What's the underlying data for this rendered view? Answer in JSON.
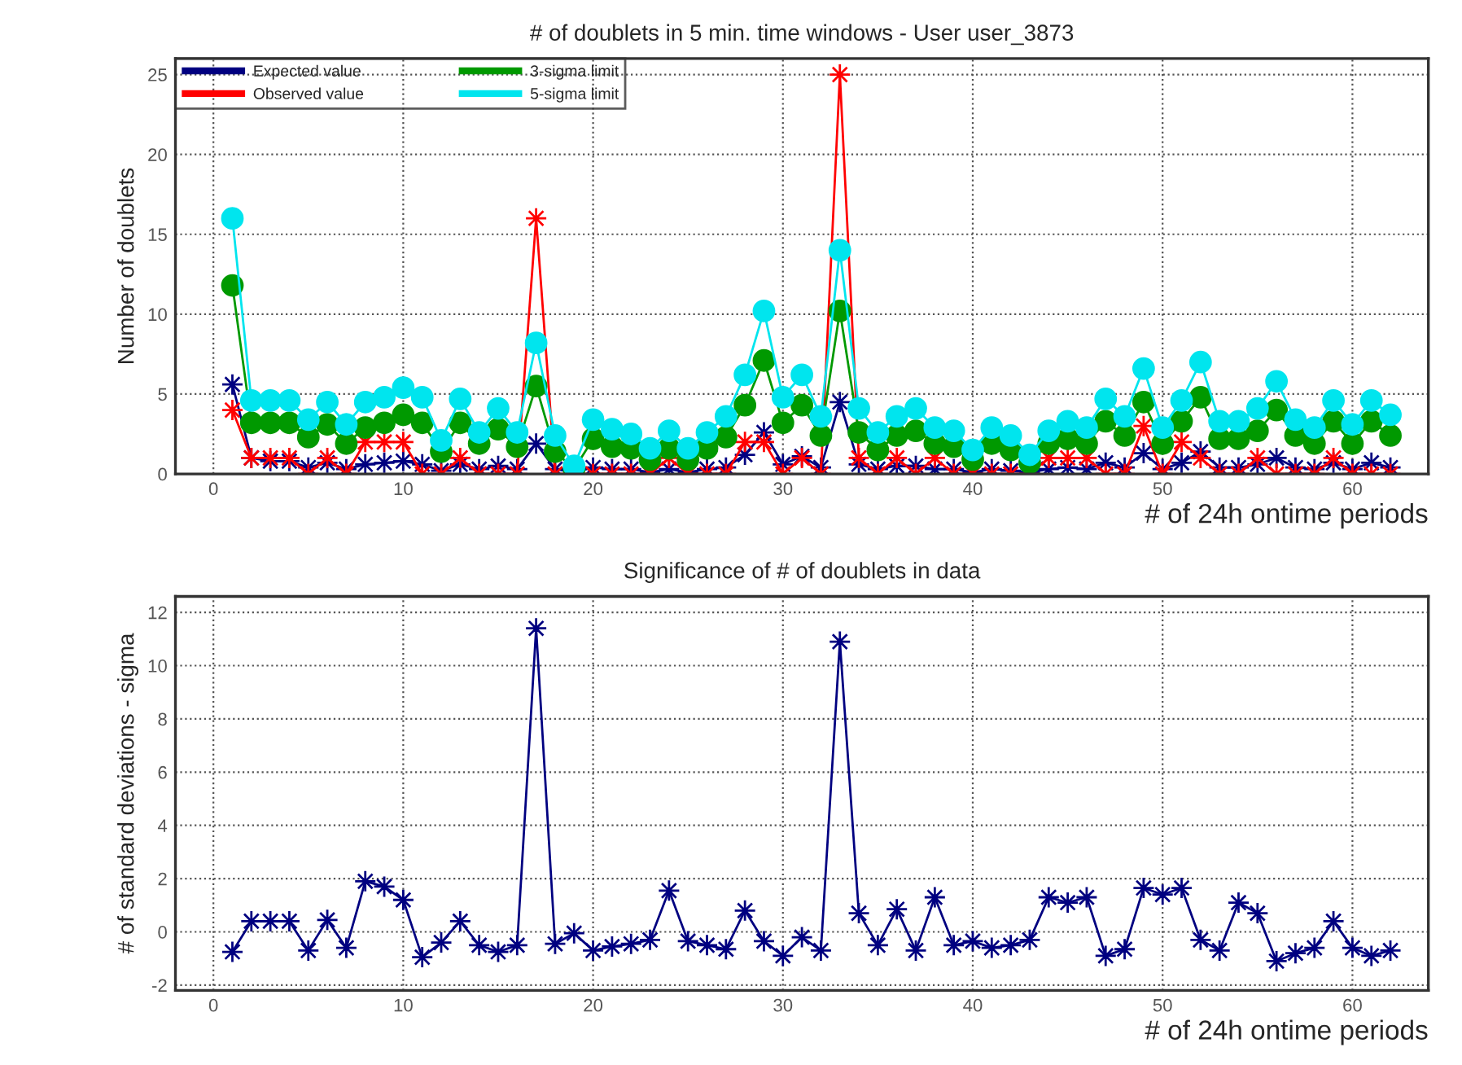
{
  "chart_data": [
    {
      "type": "line",
      "title": "# of doublets in 5 min. time windows - User user_3873",
      "xlabel": "# of 24h ontime periods",
      "ylabel": "Number of doublets",
      "x": [
        1,
        2,
        3,
        4,
        5,
        6,
        7,
        8,
        9,
        10,
        11,
        12,
        13,
        14,
        15,
        16,
        17,
        18,
        19,
        20,
        21,
        22,
        23,
        24,
        25,
        26,
        27,
        28,
        29,
        30,
        31,
        32,
        33,
        34,
        35,
        36,
        37,
        38,
        39,
        40,
        41,
        42,
        43,
        44,
        45,
        46,
        47,
        48,
        49,
        50,
        51,
        52,
        53,
        54,
        55,
        56,
        57,
        58,
        59,
        60,
        61,
        62
      ],
      "series": [
        {
          "name": "Expected value",
          "color": "#000080",
          "marker": "star",
          "values": [
            5.6,
            1.0,
            0.8,
            0.8,
            0.4,
            0.7,
            0.3,
            0.6,
            0.7,
            0.8,
            0.6,
            0.2,
            0.6,
            0.3,
            0.5,
            0.3,
            1.9,
            0.3,
            0.1,
            0.4,
            0.3,
            0.3,
            0.1,
            0.3,
            0.1,
            0.3,
            0.4,
            1.2,
            2.6,
            0.6,
            1.1,
            0.4,
            4.5,
            0.6,
            0.3,
            0.5,
            0.5,
            0.3,
            0.3,
            0.1,
            0.3,
            0.2,
            0.1,
            0.3,
            0.4,
            0.3,
            0.7,
            0.4,
            1.3,
            0.3,
            0.7,
            1.4,
            0.4,
            0.4,
            0.6,
            1.0,
            0.4,
            0.3,
            0.7,
            0.3,
            0.7,
            0.4
          ]
        },
        {
          "name": "Observed value",
          "color": "#ff0000",
          "marker": "star",
          "values": [
            4,
            1,
            1,
            1,
            0,
            1,
            0,
            2,
            2,
            2,
            0,
            0,
            1,
            0,
            0,
            0,
            16,
            0,
            0,
            0,
            0,
            0,
            0,
            1,
            0,
            0,
            0,
            2,
            2,
            0,
            1,
            0,
            25,
            1,
            0,
            1,
            0,
            1,
            0,
            0,
            0,
            0,
            0,
            1,
            1,
            1,
            0,
            0,
            3,
            0,
            2,
            1,
            0,
            0,
            1,
            0,
            0,
            0,
            1,
            0,
            0,
            0
          ]
        },
        {
          "name": "3-sigma limit",
          "color": "#009900",
          "marker": "circle",
          "values": [
            11.8,
            3.2,
            3.2,
            3.2,
            2.3,
            3.1,
            1.9,
            2.9,
            3.2,
            3.7,
            3.2,
            1.4,
            3.2,
            1.9,
            2.8,
            1.7,
            5.5,
            1.4,
            0.3,
            2.2,
            1.7,
            1.6,
            0.9,
            1.6,
            0.9,
            1.6,
            2.3,
            4.3,
            7.1,
            3.2,
            4.3,
            2.4,
            10.2,
            2.6,
            1.5,
            2.4,
            2.7,
            1.9,
            1.7,
            0.9,
            1.9,
            1.5,
            0.7,
            1.9,
            2.2,
            1.9,
            3.3,
            2.4,
            4.5,
            1.9,
            3.3,
            4.8,
            2.2,
            2.2,
            2.7,
            4.0,
            2.4,
            1.9,
            3.3,
            1.9,
            3.3,
            2.4
          ]
        },
        {
          "name": "5-sigma limit",
          "color": "#00e5ee",
          "marker": "circle",
          "values": [
            16.0,
            4.6,
            4.6,
            4.6,
            3.4,
            4.5,
            3.1,
            4.5,
            4.8,
            5.4,
            4.8,
            2.1,
            4.7,
            2.6,
            4.1,
            2.6,
            8.2,
            2.4,
            0.5,
            3.4,
            2.8,
            2.5,
            1.6,
            2.7,
            1.6,
            2.6,
            3.6,
            6.2,
            10.2,
            4.8,
            6.2,
            3.6,
            14.0,
            4.1,
            2.6,
            3.6,
            4.1,
            2.9,
            2.7,
            1.5,
            2.9,
            2.4,
            1.2,
            2.7,
            3.3,
            2.9,
            4.7,
            3.6,
            6.6,
            2.9,
            4.6,
            7.0,
            3.3,
            3.3,
            4.1,
            5.8,
            3.4,
            2.9,
            4.6,
            3.1,
            4.6,
            3.7
          ]
        }
      ],
      "xlim": [
        -2,
        64
      ],
      "ylim": [
        0,
        26
      ],
      "xticks": [
        0,
        10,
        20,
        30,
        40,
        50,
        60
      ],
      "yticks": [
        0,
        5,
        10,
        15,
        20,
        25
      ],
      "grid": true,
      "legend": "top left"
    },
    {
      "type": "line",
      "title": "Significance of # of doublets in data",
      "xlabel": "# of 24h ontime periods",
      "ylabel": "# of standard deviations - sigma",
      "x": [
        1,
        2,
        3,
        4,
        5,
        6,
        7,
        8,
        9,
        10,
        11,
        12,
        13,
        14,
        15,
        16,
        17,
        18,
        19,
        20,
        21,
        22,
        23,
        24,
        25,
        26,
        27,
        28,
        29,
        30,
        31,
        32,
        33,
        34,
        35,
        36,
        37,
        38,
        39,
        40,
        41,
        42,
        43,
        44,
        45,
        46,
        47,
        48,
        49,
        50,
        51,
        52,
        53,
        54,
        55,
        56,
        57,
        58,
        59,
        60,
        61,
        62
      ],
      "series": [
        {
          "color": "#000080",
          "marker": "star",
          "values": [
            -0.75,
            0.4,
            0.4,
            0.4,
            -0.7,
            0.45,
            -0.6,
            1.9,
            1.7,
            1.2,
            -0.95,
            -0.4,
            0.4,
            -0.5,
            -0.75,
            -0.5,
            11.4,
            -0.45,
            -0.05,
            -0.7,
            -0.55,
            -0.45,
            -0.3,
            1.55,
            -0.35,
            -0.5,
            -0.65,
            0.8,
            -0.35,
            -0.9,
            -0.2,
            -0.7,
            10.9,
            0.7,
            -0.5,
            0.85,
            -0.7,
            1.3,
            -0.5,
            -0.35,
            -0.6,
            -0.5,
            -0.3,
            1.3,
            1.1,
            1.3,
            -0.9,
            -0.65,
            1.65,
            1.4,
            1.65,
            -0.3,
            -0.7,
            1.1,
            0.7,
            -1.1,
            -0.8,
            -0.6,
            0.4,
            -0.6,
            -0.9,
            -0.7
          ]
        }
      ],
      "xlim": [
        -2,
        64
      ],
      "ylim": [
        -2.2,
        12.6
      ],
      "xticks": [
        0,
        10,
        20,
        30,
        40,
        50,
        60
      ],
      "yticks": [
        -2,
        0,
        2,
        4,
        6,
        8,
        10,
        12
      ],
      "grid": true
    }
  ]
}
